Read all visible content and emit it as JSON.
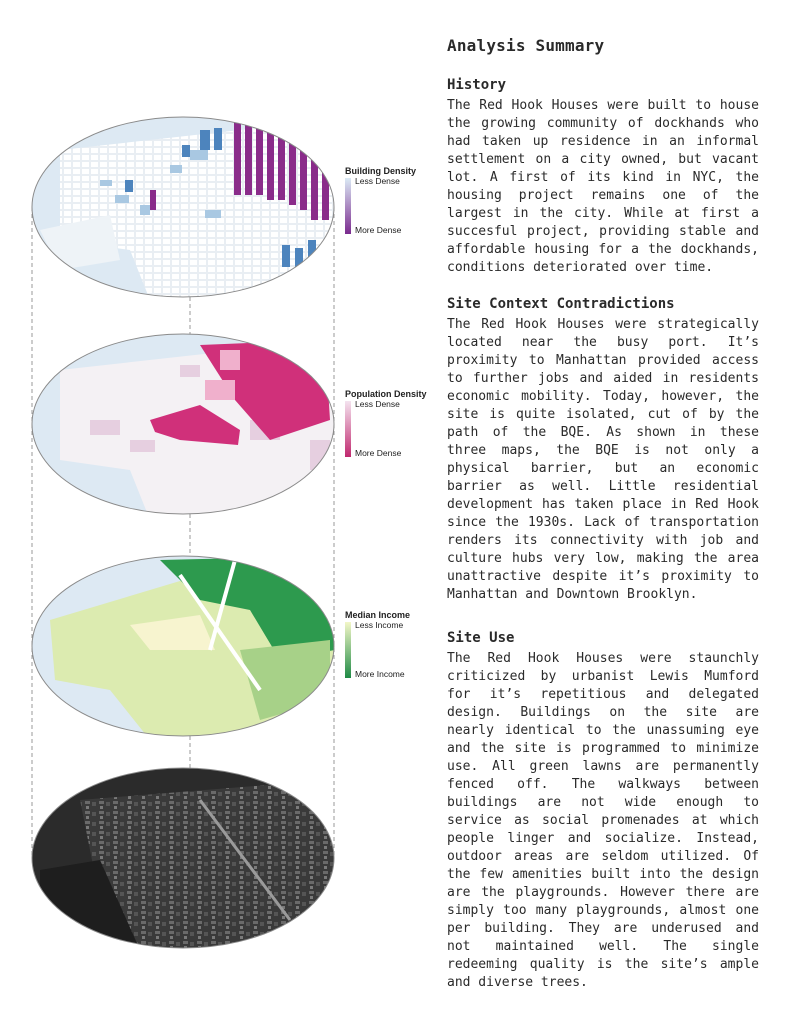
{
  "analysis": {
    "title": "Analysis Summary",
    "history": {
      "heading": "History",
      "body": "The Red Hook Houses were built to house the growing community of dockhands who had taken up residence in an informal settlement on a city owned, but vacant lot. A first of its kind in NYC, the housing project remains one of the largest in the city. While at first a succesful project, providing stable and affordable housing for a the dockhands, conditions deteriorated over time."
    },
    "context": {
      "heading": "Site Context Contradictions",
      "body": "The Red Hook Houses were strategically located near the busy port. It’s proximity to Manhattan provided access to further jobs and aided in residents economic mobility. Today, however, the site is quite isolated, cut of by the path of the BQE. As shown in these three maps, the BQE is not only a physical barrier, but an economic barrier as well. Little residential development has taken place in Red Hook since the 1930s. Lack of transportation renders its connectivity with job and culture hubs very low, making the area unattractive despite it’s proximity to Manhattan and Downtown Brooklyn."
    },
    "site_use": {
      "heading": "Site Use",
      "body": "The Red Hook Houses were staunchly criticized by urbanist Lewis Mumford for it’s repetitious and delegated design. Buildings on the site are nearly identical to the unassuming eye and the site is programmed to minimize use. All green lawns are permanently fenced off. The walkways between buildings are not wide enough to service as social promenades at which people linger and socialize. Instead, outdoor areas are seldom utilized. Of the few amenities built into the design are the playgrounds. However there are simply too many playgrounds, almost one per building. They are underused and not maintained well. The single redeeming quality is the site’s ample and diverse trees."
    }
  },
  "legends": {
    "building": {
      "title": "Building Density",
      "low": "Less Dense",
      "high": "More Dense",
      "color_low": "#dbeaf5",
      "color_high": "#7a2a8e"
    },
    "population": {
      "title": "Population Density",
      "low": "Less Dense",
      "high": "More Dense",
      "color_low": "#f4e3ef",
      "color_high": "#c0286e"
    },
    "income": {
      "title": "Median Income",
      "low": "Less Income",
      "high": "More Income",
      "color_low": "#f3f7c8",
      "color_high": "#1f8a45"
    }
  },
  "colors": {
    "water": "#dde9f3",
    "land": "#f6f8fa",
    "text": "#2a2a2a",
    "building_low": "#a9c8e2",
    "building_mid": "#4d84bd",
    "building_high": "#8a2c8a",
    "population_low": "#e6cfe0",
    "population_high": "#d0307a",
    "income_low": "#dcebb0",
    "income_mid": "#a7d188",
    "income_high": "#2d9a4e",
    "satellite_dark": "#2b2b2b"
  }
}
